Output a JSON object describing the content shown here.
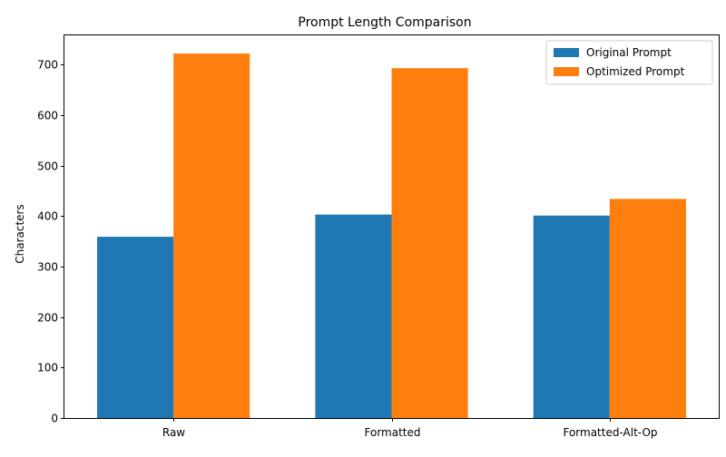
{
  "chart_data": {
    "type": "bar",
    "title": "Prompt Length Comparison",
    "xlabel": "",
    "ylabel": "Characters",
    "categories": [
      "Raw",
      "Formatted",
      "Formatted-Alt-Op"
    ],
    "series": [
      {
        "name": "Original Prompt",
        "color": "#1f77b4",
        "values": [
          359,
          403,
          401
        ]
      },
      {
        "name": "Optimized Prompt",
        "color": "#ff7f0e",
        "values": [
          722,
          693,
          434
        ]
      }
    ],
    "ylim": [
      0,
      758
    ],
    "yticks": [
      0,
      100,
      200,
      300,
      400,
      500,
      600,
      700
    ],
    "grid": false,
    "legend": "top-right"
  }
}
